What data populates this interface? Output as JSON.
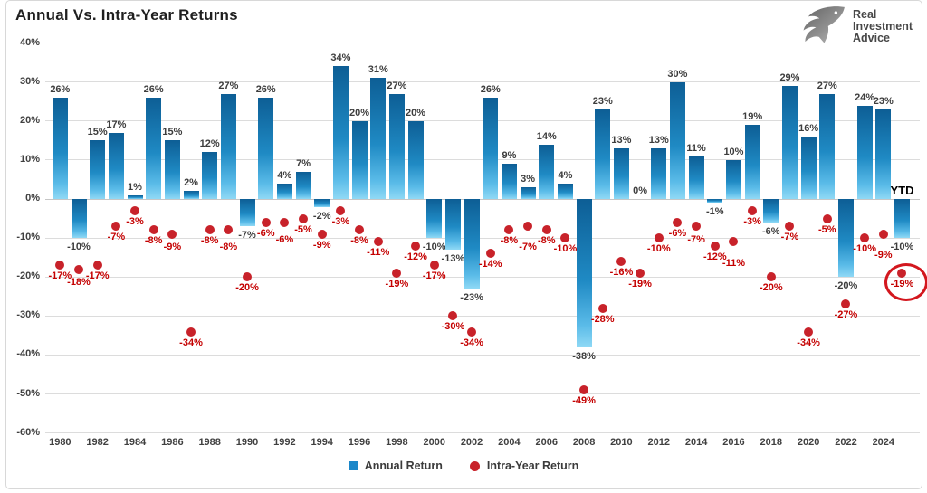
{
  "title": "Annual Vs. Intra-Year Returns",
  "brand": {
    "name": "Real Investment Advice",
    "lines": [
      "Real",
      "Investment",
      "Advice"
    ],
    "icon": "eagle-icon"
  },
  "colors": {
    "bar_top": "#0d5e95",
    "bar_mid": "#1f8ac4",
    "bar_bottom": "#90d9f5",
    "dot": "#c8222a",
    "dot_label": "#c40000",
    "bar_label": "#3d3d3d",
    "axis_label": "#404040",
    "gridline": "#dcdcdc",
    "highlight_circle": "#d3171e"
  },
  "chart_data": {
    "type": "bar",
    "title": "Annual Vs. Intra-Year Returns",
    "xlabel": "",
    "ylabel": "",
    "ylim": [
      -60,
      40
    ],
    "yticks": [
      40,
      30,
      20,
      10,
      0,
      -10,
      -20,
      -30,
      -40,
      -50,
      -60
    ],
    "ytick_format": "{v}%",
    "grid": "horizontal",
    "legend_position": "bottom",
    "categories": [
      "1980",
      "1981",
      "1982",
      "1983",
      "1984",
      "1985",
      "1986",
      "1987",
      "1988",
      "1989",
      "1990",
      "1991",
      "1992",
      "1993",
      "1994",
      "1995",
      "1996",
      "1997",
      "1998",
      "1999",
      "2000",
      "2001",
      "2002",
      "2003",
      "2004",
      "2005",
      "2006",
      "2007",
      "2008",
      "2009",
      "2010",
      "2011",
      "2012",
      "2013",
      "2014",
      "2015",
      "2016",
      "2017",
      "2018",
      "2019",
      "2020",
      "2021",
      "2022",
      "2023",
      "2024",
      "YTD"
    ],
    "xticks": [
      "1980",
      "1982",
      "1984",
      "1986",
      "1988",
      "1990",
      "1992",
      "1994",
      "1996",
      "1998",
      "2000",
      "2002",
      "2004",
      "2006",
      "2008",
      "2010",
      "2012",
      "2014",
      "2016",
      "2018",
      "2020",
      "2022",
      "2024"
    ],
    "series": [
      {
        "name": "Annual Return",
        "type": "bar",
        "color": "#1b87c9",
        "values": [
          26,
          -10,
          15,
          17,
          1,
          26,
          15,
          2,
          12,
          27,
          -7,
          26,
          4,
          7,
          -2,
          34,
          20,
          31,
          27,
          20,
          -10,
          -13,
          -23,
          26,
          9,
          3,
          14,
          4,
          -38,
          23,
          13,
          0,
          13,
          30,
          11,
          -1,
          10,
          19,
          -6,
          29,
          16,
          27,
          -20,
          24,
          23,
          -10
        ]
      },
      {
        "name": "Intra-Year Return",
        "type": "scatter",
        "color": "#c8222a",
        "values": [
          -17,
          -18,
          -17,
          -7,
          -3,
          -8,
          -9,
          -34,
          -8,
          -8,
          -20,
          -6,
          -6,
          -5,
          -9,
          -3,
          -8,
          -11,
          -19,
          -12,
          -17,
          -30,
          -34,
          -14,
          -8,
          -7,
          -8,
          -10,
          -49,
          -28,
          -16,
          -19,
          -10,
          -6,
          -7,
          -12,
          -11,
          -3,
          -20,
          -7,
          -34,
          -5,
          -27,
          -10,
          -9,
          -19
        ]
      }
    ],
    "value_label_format": "{v}%",
    "ytd_category_label": "YTD",
    "highlight": {
      "category": "YTD",
      "series": "Intra-Year Return",
      "value": -19,
      "style": "red-circle"
    }
  }
}
